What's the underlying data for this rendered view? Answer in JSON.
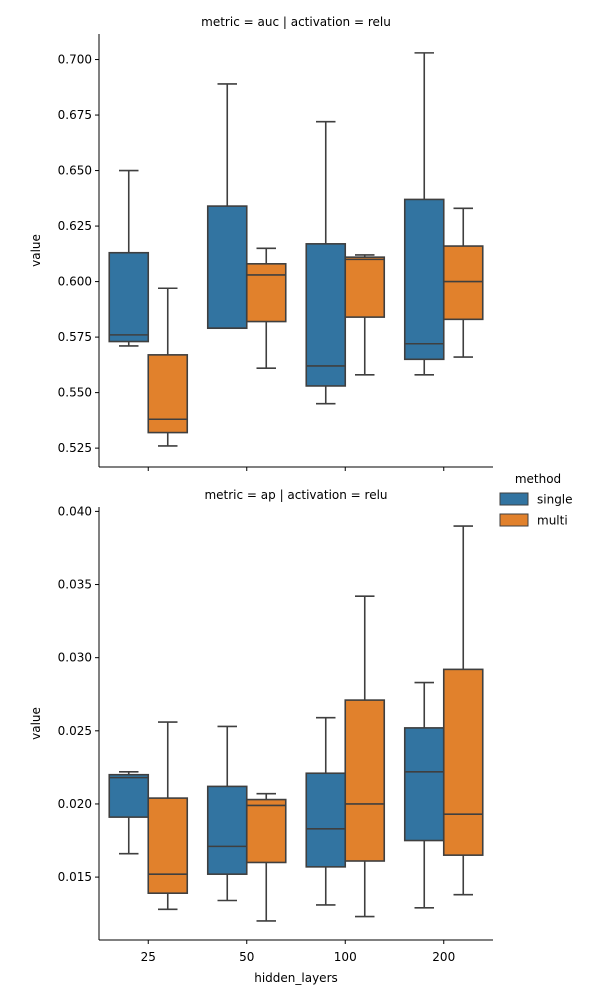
{
  "chart_data": [
    {
      "type": "box",
      "title": "metric = auc | activation = relu",
      "ylabel": "value",
      "xlabel": "",
      "categories": [
        "25",
        "50",
        "100",
        "200"
      ],
      "ylim": [
        0.5165,
        0.7115
      ],
      "yticks": [
        0.525,
        0.55,
        0.575,
        0.6,
        0.625,
        0.65,
        0.675,
        0.7
      ],
      "ytick_labels": [
        "0.525",
        "0.550",
        "0.575",
        "0.600",
        "0.625",
        "0.650",
        "0.675",
        "0.700"
      ],
      "series": [
        {
          "name": "single",
          "color": "#3274a1",
          "boxes": [
            {
              "whisker_low": 0.571,
              "q1": 0.573,
              "median": 0.576,
              "q3": 0.613,
              "whisker_high": 0.65
            },
            {
              "whisker_low": 0.579,
              "q1": 0.579,
              "median": 0.579,
              "q3": 0.634,
              "whisker_high": 0.689
            },
            {
              "whisker_low": 0.545,
              "q1": 0.553,
              "median": 0.562,
              "q3": 0.617,
              "whisker_high": 0.672
            },
            {
              "whisker_low": 0.558,
              "q1": 0.565,
              "median": 0.572,
              "q3": 0.637,
              "whisker_high": 0.703
            }
          ]
        },
        {
          "name": "multi",
          "color": "#e1812c",
          "boxes": [
            {
              "whisker_low": 0.526,
              "q1": 0.532,
              "median": 0.538,
              "q3": 0.567,
              "whisker_high": 0.597
            },
            {
              "whisker_low": 0.561,
              "q1": 0.582,
              "median": 0.603,
              "q3": 0.608,
              "whisker_high": 0.615
            },
            {
              "whisker_low": 0.558,
              "q1": 0.584,
              "median": 0.61,
              "q3": 0.611,
              "whisker_high": 0.612
            },
            {
              "whisker_low": 0.566,
              "q1": 0.583,
              "median": 0.6,
              "q3": 0.616,
              "whisker_high": 0.633
            }
          ]
        }
      ]
    },
    {
      "type": "box",
      "title": "metric = ap | activation = relu",
      "ylabel": "value",
      "xlabel": "hidden_layers",
      "categories": [
        "25",
        "50",
        "100",
        "200"
      ],
      "ylim": [
        0.0107,
        0.0403
      ],
      "yticks": [
        0.015,
        0.02,
        0.025,
        0.03,
        0.035,
        0.04
      ],
      "ytick_labels": [
        "0.015",
        "0.020",
        "0.025",
        "0.030",
        "0.035",
        "0.040"
      ],
      "series": [
        {
          "name": "single",
          "color": "#3274a1",
          "boxes": [
            {
              "whisker_low": 0.0166,
              "q1": 0.0191,
              "median": 0.0218,
              "q3": 0.022,
              "whisker_high": 0.0222
            },
            {
              "whisker_low": 0.0134,
              "q1": 0.0152,
              "median": 0.0171,
              "q3": 0.0212,
              "whisker_high": 0.0253
            },
            {
              "whisker_low": 0.0131,
              "q1": 0.0157,
              "median": 0.0183,
              "q3": 0.0221,
              "whisker_high": 0.0259
            },
            {
              "whisker_low": 0.0129,
              "q1": 0.0175,
              "median": 0.0222,
              "q3": 0.0252,
              "whisker_high": 0.0283
            }
          ]
        },
        {
          "name": "multi",
          "color": "#e1812c",
          "boxes": [
            {
              "whisker_low": 0.0128,
              "q1": 0.0139,
              "median": 0.0152,
              "q3": 0.0204,
              "whisker_high": 0.0256
            },
            {
              "whisker_low": 0.012,
              "q1": 0.016,
              "median": 0.0199,
              "q3": 0.0203,
              "whisker_high": 0.0207
            },
            {
              "whisker_low": 0.0123,
              "q1": 0.0161,
              "median": 0.02,
              "q3": 0.0271,
              "whisker_high": 0.0342
            },
            {
              "whisker_low": 0.0138,
              "q1": 0.0165,
              "median": 0.0193,
              "q3": 0.0292,
              "whisker_high": 0.039
            }
          ]
        }
      ]
    }
  ],
  "legend": {
    "title": "method",
    "placement": "right",
    "entries": [
      {
        "label": "single",
        "color": "#3274a1"
      },
      {
        "label": "multi",
        "color": "#e1812c"
      }
    ]
  },
  "style": {
    "edge_color": "#3f3f3f",
    "axis_color": "#000000"
  }
}
